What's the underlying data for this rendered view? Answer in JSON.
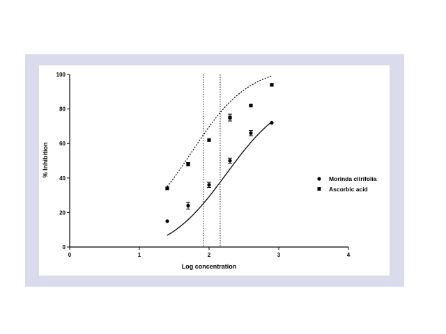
{
  "chart_data": {
    "type": "scatter",
    "title": "",
    "xlabel": "Log concentration",
    "ylabel": "% Inhibition",
    "xlim": [
      0,
      4
    ],
    "ylim": [
      0,
      100
    ],
    "xticks": [
      "0",
      "1",
      "2",
      "3",
      "4"
    ],
    "yticks": [
      "0",
      "20",
      "40",
      "60",
      "80",
      "100"
    ],
    "reference_lines_x": [
      1.92,
      2.16
    ],
    "grid": false,
    "legend_position": "right",
    "series": [
      {
        "name": "Morinda citrifolia",
        "marker": "circle",
        "line_style": "solid",
        "points": [
          {
            "x": 1.4,
            "y": 15,
            "err": 0
          },
          {
            "x": 1.7,
            "y": 24,
            "err": 2
          },
          {
            "x": 2.0,
            "y": 36,
            "err": 1.5
          },
          {
            "x": 2.3,
            "y": 50,
            "err": 1.5
          },
          {
            "x": 2.6,
            "y": 66,
            "err": 1.5
          },
          {
            "x": 2.9,
            "y": 72,
            "err": 0
          }
        ],
        "fit": {
          "bottom": -5,
          "top": 90,
          "log_ec50": 2.25,
          "hill": 1.0
        }
      },
      {
        "name": "Ascorbic acid",
        "marker": "square",
        "line_style": "dashed",
        "points": [
          {
            "x": 1.4,
            "y": 34,
            "err": 0
          },
          {
            "x": 1.7,
            "y": 48,
            "err": 1
          },
          {
            "x": 2.0,
            "y": 62,
            "err": 0
          },
          {
            "x": 2.3,
            "y": 75,
            "err": 2
          },
          {
            "x": 2.6,
            "y": 82,
            "err": 0
          },
          {
            "x": 2.9,
            "y": 94,
            "err": 0
          }
        ],
        "fit": {
          "bottom": 5,
          "top": 105,
          "log_ec50": 1.75,
          "hill": 1.05
        }
      }
    ]
  }
}
